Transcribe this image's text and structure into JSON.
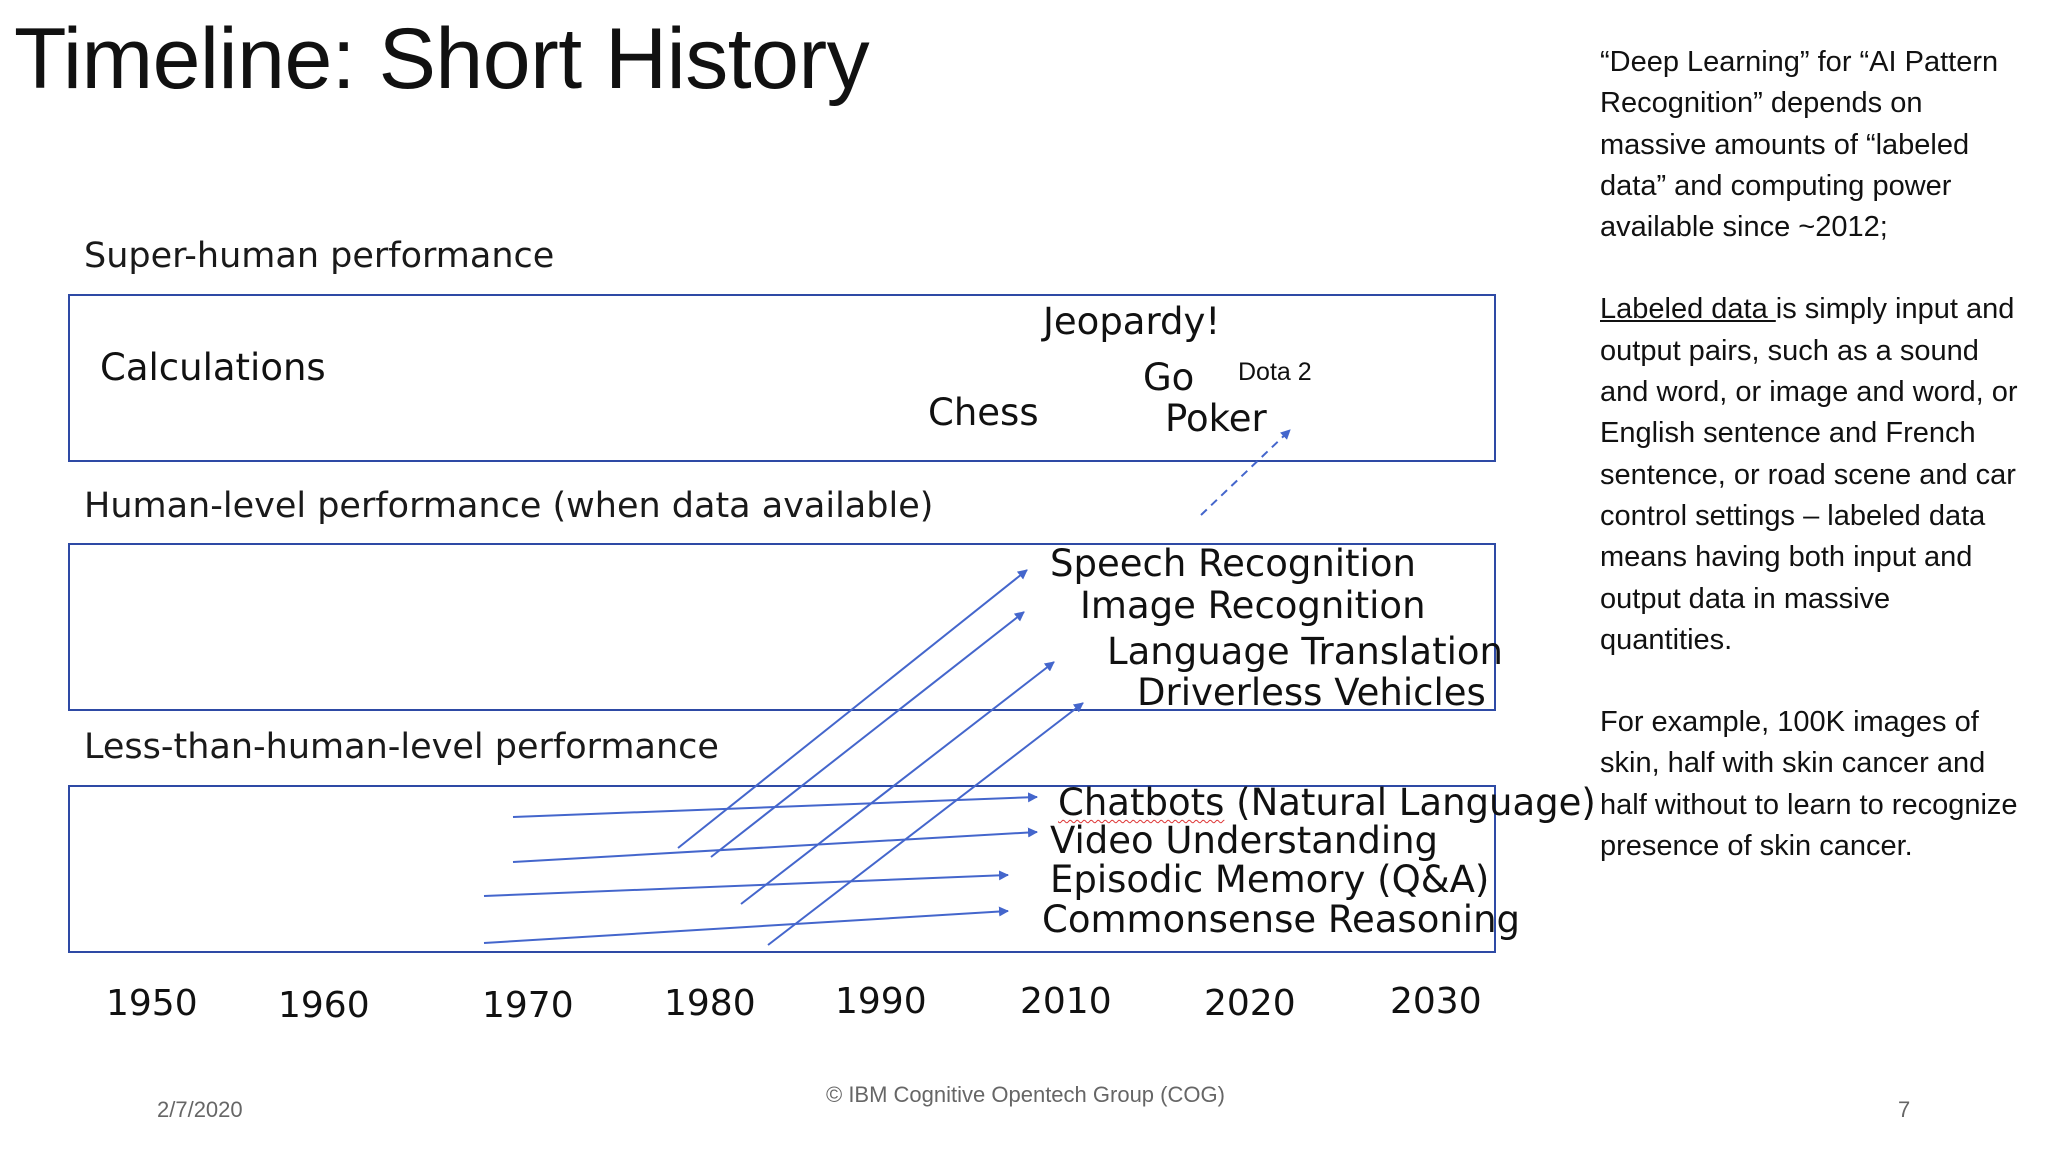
{
  "title": "Timeline: Short History",
  "bands": [
    {
      "label": "Super-human performance"
    },
    {
      "label": "Human-level performance (when data available)"
    },
    {
      "label": "Less-than-human-level performance"
    }
  ],
  "superhuman_items": {
    "calculations": "Calculations",
    "jeopardy": "Jeopardy!",
    "go": "Go",
    "dota": "Dota 2",
    "chess": "Chess",
    "poker": "Poker"
  },
  "human_items": {
    "speech": "Speech Recognition",
    "image": "Image Recognition",
    "translation": "Language Translation",
    "driverless": "Driverless Vehicles"
  },
  "less_items": {
    "chatbots_a": "Chatbots",
    "chatbots_b": " (Natural Language)",
    "video": "Video Understanding",
    "episodic": "Episodic Memory (Q&A)",
    "commonsense": "Commonsense Reasoning"
  },
  "years": [
    "1950",
    "1960",
    "1970",
    "1980",
    "1990",
    "2010",
    "2020",
    "2030"
  ],
  "note": {
    "p1": "“Deep Learning” for “AI Pattern Recognition” depends on massive amounts of “labeled data” and computing power available since ~2012;",
    "p2_underline": "Labeled data ",
    "p2_rest": "is simply input and output pairs, such as a sound and word, or image and word, or English sentence and French sentence, or road scene and car control settings  – labeled data means having both input and output data in massive quantities.",
    "p3": "For example, 100K images of skin, half with skin cancer and half without to learn to recognize presence of skin cancer."
  },
  "footer": {
    "date": "2/7/2020",
    "copyright": "© IBM Cognitive Opentech Group (COG)",
    "page": "7"
  },
  "colors": {
    "box": "#2e4aa5",
    "arrow": "#4466cc"
  }
}
